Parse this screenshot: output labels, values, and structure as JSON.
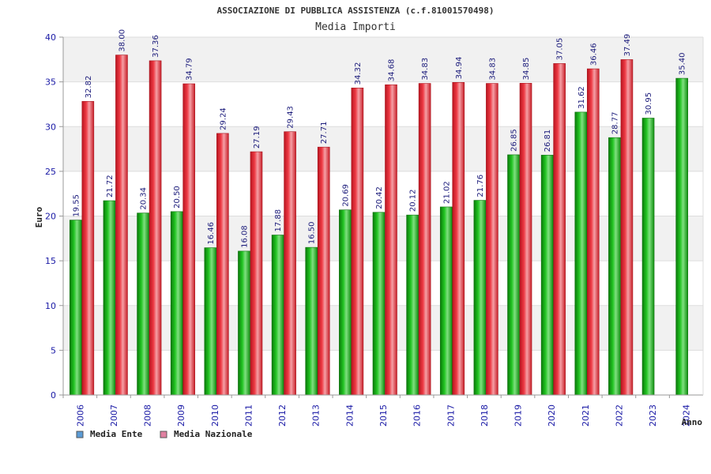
{
  "chart_data": {
    "type": "bar",
    "title": "ASSOCIAZIONE DI PUBBLICA ASSISTENZA (c.f.81001570498)",
    "subtitle": "Media Importi",
    "xlabel": "Anno",
    "ylabel": "Euro",
    "ylim": [
      0,
      40
    ],
    "yticks": [
      0,
      5,
      10,
      15,
      20,
      25,
      30,
      35,
      40
    ],
    "categories": [
      "2006",
      "2007",
      "2008",
      "2009",
      "2010",
      "2011",
      "2012",
      "2013",
      "2014",
      "2015",
      "2016",
      "2017",
      "2018",
      "2019",
      "2020",
      "2021",
      "2022",
      "2023",
      "2024"
    ],
    "series": [
      {
        "name": "Media Ente",
        "color": "#1fb41f",
        "legend_color": "#5b9bd5",
        "values": [
          19.55,
          21.72,
          20.34,
          20.5,
          16.46,
          16.08,
          17.88,
          16.5,
          20.69,
          20.42,
          20.12,
          21.02,
          21.76,
          26.85,
          26.81,
          31.62,
          28.77,
          30.95,
          35.4
        ],
        "labels": [
          "19.55",
          "21.72",
          "20.34",
          "20.50",
          "16.46",
          "16.08",
          "17.88",
          "16.50",
          "20.69",
          "20.42",
          "20.12",
          "21.02",
          "21.76",
          "26.85",
          "26.81",
          "31.62",
          "28.77",
          "30.95",
          "35.40"
        ]
      },
      {
        "name": "Media Nazionale",
        "color": "#e8323c",
        "legend_color": "#e07fa0",
        "values": [
          32.82,
          38.0,
          37.36,
          34.79,
          29.24,
          27.19,
          29.43,
          27.71,
          34.32,
          34.68,
          34.83,
          34.94,
          34.83,
          34.85,
          37.05,
          36.46,
          37.49,
          null,
          null
        ],
        "labels": [
          "32.82",
          "38.00",
          "37.36",
          "34.79",
          "29.24",
          "27.19",
          "29.43",
          "27.71",
          "34.32",
          "34.68",
          "34.83",
          "34.94",
          "34.83",
          "34.85",
          "37.05",
          "36.46",
          "37.49",
          null,
          null
        ]
      }
    ],
    "grid": true,
    "legend_position": "bottom-left"
  }
}
